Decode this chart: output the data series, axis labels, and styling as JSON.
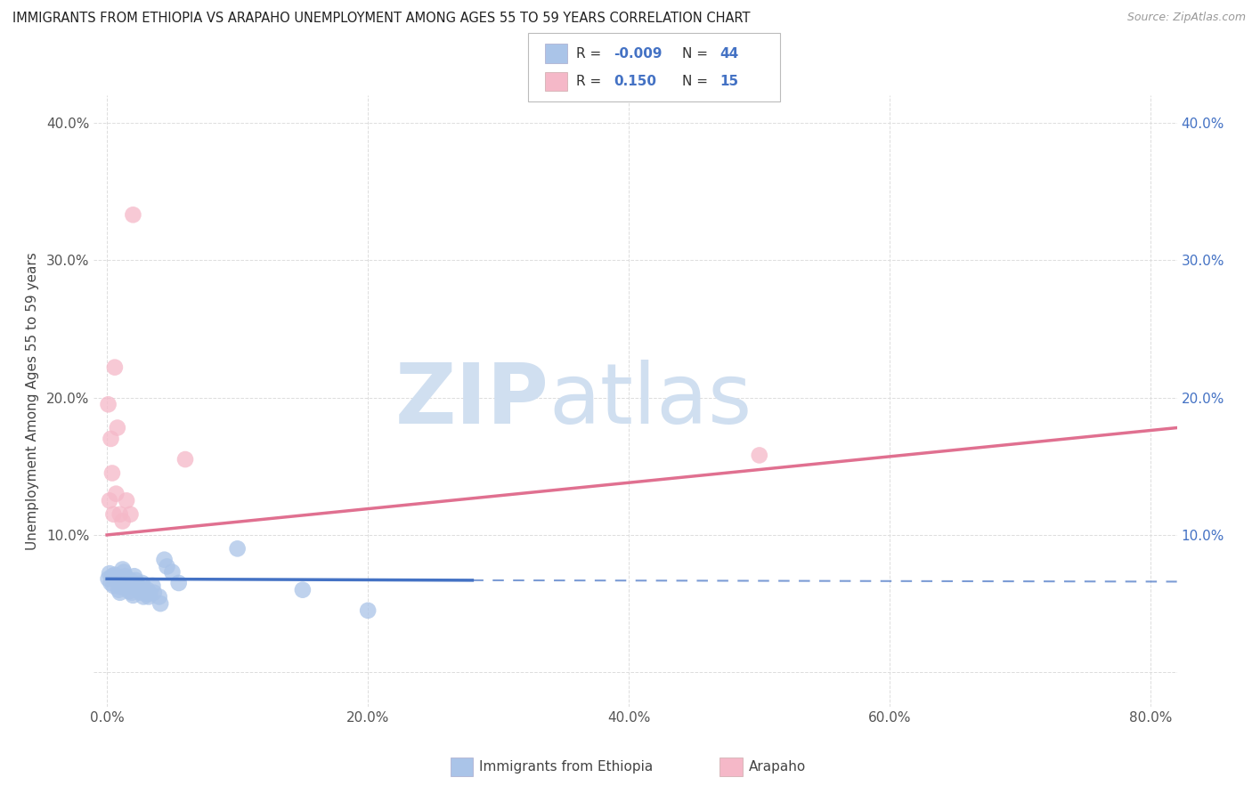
{
  "title": "IMMIGRANTS FROM ETHIOPIA VS ARAPAHO UNEMPLOYMENT AMONG AGES 55 TO 59 YEARS CORRELATION CHART",
  "source": "Source: ZipAtlas.com",
  "xlabel_bottom": [
    "Immigrants from Ethiopia",
    "Arapaho"
  ],
  "ylabel": "Unemployment Among Ages 55 to 59 years",
  "xlim": [
    -0.01,
    0.82
  ],
  "ylim": [
    -0.025,
    0.42
  ],
  "xticks": [
    0.0,
    0.2,
    0.4,
    0.6,
    0.8
  ],
  "yticks": [
    0.0,
    0.1,
    0.2,
    0.3,
    0.4
  ],
  "xtick_labels": [
    "0.0%",
    "20.0%",
    "40.0%",
    "60.0%",
    "80.0%"
  ],
  "ytick_labels_left": [
    "",
    "10.0%",
    "20.0%",
    "30.0%",
    "40.0%"
  ],
  "ytick_labels_right": [
    "",
    "10.0%",
    "20.0%",
    "30.0%",
    "40.0%"
  ],
  "blue_color": "#aac4e8",
  "pink_color": "#f5b8c8",
  "blue_line_color": "#4472c4",
  "pink_line_color": "#e07090",
  "blue_scatter": [
    [
      0.001,
      0.068
    ],
    [
      0.002,
      0.072
    ],
    [
      0.003,
      0.065
    ],
    [
      0.004,
      0.07
    ],
    [
      0.005,
      0.063
    ],
    [
      0.006,
      0.071
    ],
    [
      0.007,
      0.069
    ],
    [
      0.008,
      0.066
    ],
    [
      0.009,
      0.06
    ],
    [
      0.01,
      0.058
    ],
    [
      0.011,
      0.062
    ],
    [
      0.012,
      0.075
    ],
    [
      0.013,
      0.073
    ],
    [
      0.014,
      0.07
    ],
    [
      0.015,
      0.068
    ],
    [
      0.016,
      0.062
    ],
    [
      0.017,
      0.059
    ],
    [
      0.018,
      0.067
    ],
    [
      0.019,
      0.058
    ],
    [
      0.02,
      0.056
    ],
    [
      0.021,
      0.07
    ],
    [
      0.022,
      0.067
    ],
    [
      0.023,
      0.063
    ],
    [
      0.024,
      0.06
    ],
    [
      0.025,
      0.062
    ],
    [
      0.026,
      0.058
    ],
    [
      0.027,
      0.065
    ],
    [
      0.028,
      0.055
    ],
    [
      0.029,
      0.06
    ],
    [
      0.03,
      0.057
    ],
    [
      0.031,
      0.06
    ],
    [
      0.032,
      0.055
    ],
    [
      0.033,
      0.057
    ],
    [
      0.035,
      0.063
    ],
    [
      0.036,
      0.058
    ],
    [
      0.04,
      0.055
    ],
    [
      0.041,
      0.05
    ],
    [
      0.044,
      0.082
    ],
    [
      0.046,
      0.077
    ],
    [
      0.05,
      0.073
    ],
    [
      0.055,
      0.065
    ],
    [
      0.1,
      0.09
    ],
    [
      0.15,
      0.06
    ],
    [
      0.2,
      0.045
    ]
  ],
  "pink_scatter": [
    [
      0.001,
      0.195
    ],
    [
      0.002,
      0.125
    ],
    [
      0.003,
      0.17
    ],
    [
      0.004,
      0.145
    ],
    [
      0.005,
      0.115
    ],
    [
      0.006,
      0.222
    ],
    [
      0.007,
      0.13
    ],
    [
      0.008,
      0.178
    ],
    [
      0.01,
      0.115
    ],
    [
      0.012,
      0.11
    ],
    [
      0.015,
      0.125
    ],
    [
      0.018,
      0.115
    ],
    [
      0.02,
      0.333
    ],
    [
      0.06,
      0.155
    ],
    [
      0.5,
      0.158
    ]
  ],
  "blue_trendline_solid": {
    "x": [
      0.0,
      0.28
    ],
    "y": [
      0.068,
      0.067
    ]
  },
  "blue_trendline_dashed": {
    "x": [
      0.28,
      0.82
    ],
    "y": [
      0.067,
      0.066
    ]
  },
  "pink_trendline": {
    "x": [
      0.0,
      0.82
    ],
    "y": [
      0.1,
      0.178
    ]
  },
  "watermark_zip": "ZIP",
  "watermark_atlas": "atlas",
  "watermark_color": "#d0dff0",
  "background_color": "#ffffff",
  "grid_color": "#dddddd"
}
